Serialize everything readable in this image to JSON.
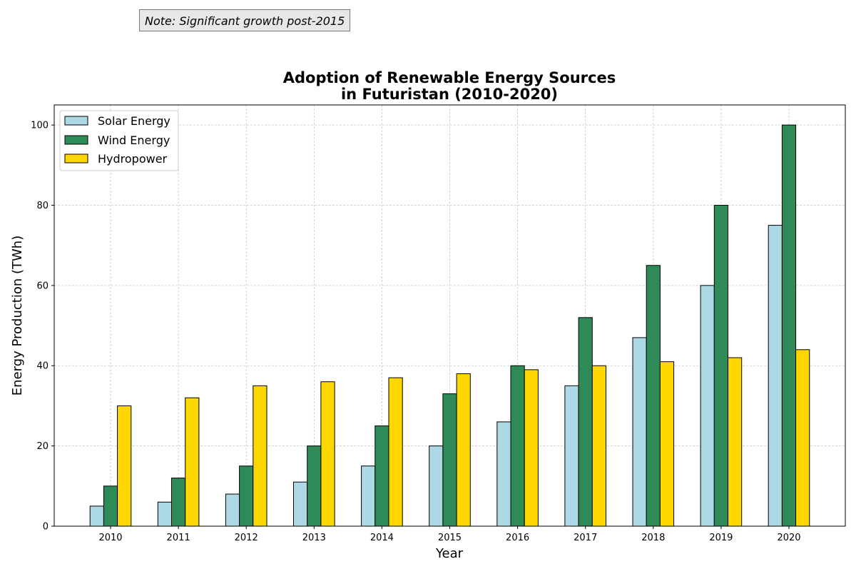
{
  "note": "Note: Significant growth post-2015",
  "chart_data": {
    "type": "bar",
    "title_lines": [
      "Adoption of Renewable Energy Sources",
      "in Futuristan (2010-2020)"
    ],
    "xlabel": "Year",
    "ylabel": "Energy Production (TWh)",
    "categories": [
      "2010",
      "2011",
      "2012",
      "2013",
      "2014",
      "2015",
      "2016",
      "2017",
      "2018",
      "2019",
      "2020"
    ],
    "ylim": [
      0,
      105
    ],
    "yticks": [
      0,
      20,
      40,
      60,
      80,
      100
    ],
    "grid": true,
    "legend_position": "top-left",
    "series": [
      {
        "name": "Solar Energy",
        "color": "#add8e6",
        "values": [
          5,
          6,
          8,
          11,
          15,
          20,
          26,
          35,
          47,
          60,
          75
        ]
      },
      {
        "name": "Wind Energy",
        "color": "#2e8b57",
        "values": [
          10,
          12,
          15,
          20,
          25,
          33,
          40,
          52,
          65,
          80,
          100
        ]
      },
      {
        "name": "Hydropower",
        "color": "#ffd700",
        "values": [
          30,
          32,
          35,
          36,
          37,
          38,
          39,
          40,
          41,
          42,
          44
        ]
      }
    ]
  }
}
